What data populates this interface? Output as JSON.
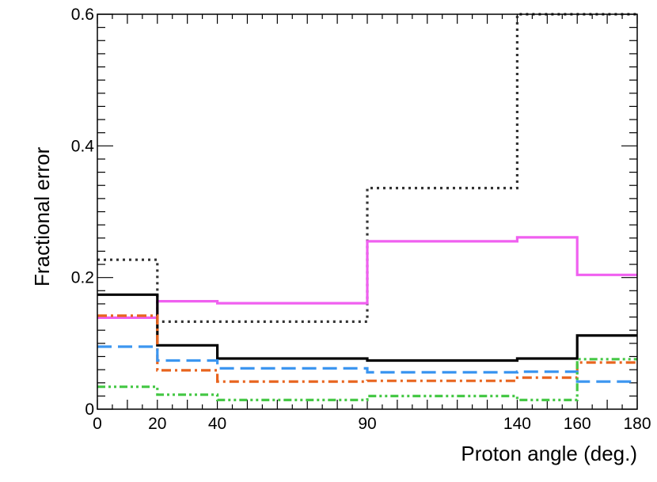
{
  "chart_data": {
    "type": "line",
    "step": true,
    "title": "",
    "xlabel": "Proton angle (deg.)",
    "ylabel": "Fractional error",
    "xlim": [
      0,
      180
    ],
    "ylim": [
      0,
      0.6
    ],
    "bin_edges": [
      0,
      20,
      40,
      90,
      140,
      160,
      180
    ],
    "x_tick_labels": [
      "0",
      "20",
      "40",
      "90",
      "140",
      "160",
      "180"
    ],
    "y_ticks": [
      0,
      0.2,
      0.4,
      0.6
    ],
    "y_tick_labels": [
      "0",
      "0.2",
      "0.4",
      "0.6"
    ],
    "grid": false,
    "legend": "none",
    "series": [
      {
        "name": "dotted-dark-gray",
        "color": "#333333",
        "dash": "dotted",
        "values": [
          0.227,
          0.133,
          0.133,
          0.336,
          0.6,
          0.6
        ]
      },
      {
        "name": "solid-magenta",
        "color": "#f060f0",
        "dash": "solid",
        "values": [
          0.139,
          0.164,
          0.161,
          0.255,
          0.261,
          0.204
        ]
      },
      {
        "name": "solid-black",
        "color": "#000000",
        "dash": "solid",
        "values": [
          0.174,
          0.097,
          0.077,
          0.074,
          0.077,
          0.112
        ]
      },
      {
        "name": "dash-dot-orange",
        "color": "#e8641e",
        "dash": "dashdot",
        "values": [
          0.142,
          0.059,
          0.042,
          0.043,
          0.048,
          0.071
        ]
      },
      {
        "name": "long-dash-blue",
        "color": "#3c96f0",
        "dash": "dashed",
        "values": [
          0.095,
          0.074,
          0.062,
          0.056,
          0.057,
          0.042
        ]
      },
      {
        "name": "dash-dot-dot-green",
        "color": "#46c846",
        "dash": "dashdotdot",
        "values": [
          0.034,
          0.022,
          0.014,
          0.02,
          0.014,
          0.076
        ]
      }
    ]
  }
}
